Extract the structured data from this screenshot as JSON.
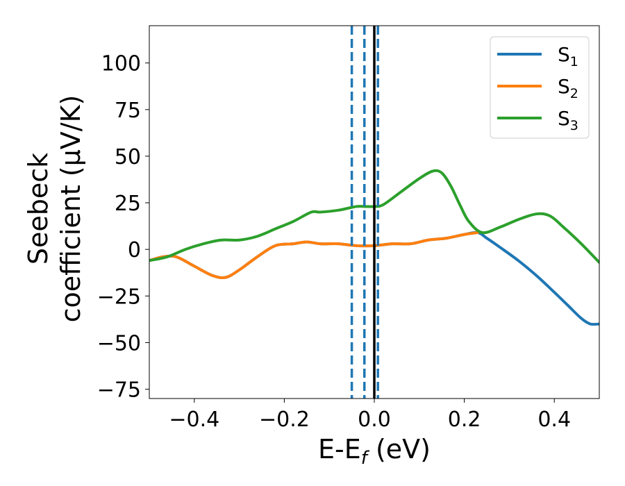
{
  "chart_data": {
    "type": "line",
    "title": "",
    "xlabel_main": "E-E",
    "xlabel_sub": "f",
    "xlabel_unit": " (eV)",
    "ylabel_line1": "Seebeck",
    "ylabel_line2": "coefficient  (μV/K)",
    "xlim": [
      -0.5,
      0.5
    ],
    "ylim": [
      -80,
      120
    ],
    "xticks": [
      -0.4,
      -0.2,
      0.0,
      0.2,
      0.4
    ],
    "xtick_labels": [
      "−0.4",
      "−0.2",
      "0.0",
      "0.2",
      "0.4"
    ],
    "yticks": [
      -75,
      -50,
      -25,
      0,
      25,
      50,
      75,
      100
    ],
    "ytick_labels": [
      "−75",
      "−50",
      "−25",
      "0",
      "25",
      "50",
      "75",
      "100"
    ],
    "grid": false,
    "legend_position": "top-right",
    "vlines": [
      {
        "x": -0.05,
        "style": "dashed",
        "color": "#1f77b4"
      },
      {
        "x": -0.022,
        "style": "dashed",
        "color": "#1f77b4"
      },
      {
        "x": 0.008,
        "style": "dashed",
        "color": "#1f77b4"
      },
      {
        "x": 0.0,
        "style": "solid",
        "color": "#000000"
      }
    ],
    "series": [
      {
        "name": "S",
        "sub": "1",
        "color": "#1f77b4",
        "x": [
          -0.5,
          -0.47,
          -0.44,
          -0.4,
          -0.36,
          -0.33,
          -0.3,
          -0.26,
          -0.22,
          -0.18,
          -0.15,
          -0.12,
          -0.08,
          -0.04,
          0.0,
          0.04,
          0.08,
          0.12,
          0.16,
          0.2,
          0.23,
          0.25,
          0.28,
          0.32,
          0.36,
          0.4,
          0.43,
          0.46,
          0.48,
          0.5
        ],
        "y": [
          -6,
          -4,
          -4,
          -9,
          -14,
          -15,
          -11,
          -4,
          2,
          3,
          4,
          3,
          3,
          2,
          2,
          3,
          3,
          5,
          6,
          8,
          9,
          6,
          1,
          -6,
          -14,
          -23,
          -30,
          -37,
          -40,
          -40
        ]
      },
      {
        "name": "S",
        "sub": "2",
        "color": "#ff7f0e",
        "x": [
          -0.5,
          -0.47,
          -0.44,
          -0.4,
          -0.36,
          -0.33,
          -0.3,
          -0.26,
          -0.22,
          -0.18,
          -0.15,
          -0.12,
          -0.08,
          -0.04,
          0.0,
          0.04,
          0.08,
          0.12,
          0.16,
          0.2,
          0.23
        ],
        "y": [
          -6,
          -4,
          -4,
          -9,
          -14,
          -15,
          -11,
          -4,
          2,
          3,
          4,
          3,
          3,
          2,
          2,
          3,
          3,
          5,
          6,
          8,
          9
        ]
      },
      {
        "name": "S",
        "sub": "3",
        "color": "#2ca02c",
        "x": [
          -0.5,
          -0.46,
          -0.42,
          -0.38,
          -0.34,
          -0.3,
          -0.26,
          -0.22,
          -0.18,
          -0.14,
          -0.12,
          -0.08,
          -0.04,
          -0.02,
          0.0,
          0.02,
          0.06,
          0.1,
          0.13,
          0.15,
          0.17,
          0.19,
          0.21,
          0.24,
          0.28,
          0.32,
          0.36,
          0.39,
          0.42,
          0.46,
          0.5
        ],
        "y": [
          -6,
          -4,
          0,
          3,
          5,
          5,
          7,
          11,
          15,
          20,
          20,
          21,
          23,
          23,
          23,
          24,
          31,
          38,
          42,
          41,
          34,
          24,
          15,
          9,
          12,
          16,
          19,
          18,
          12,
          3,
          -7
        ]
      }
    ]
  }
}
